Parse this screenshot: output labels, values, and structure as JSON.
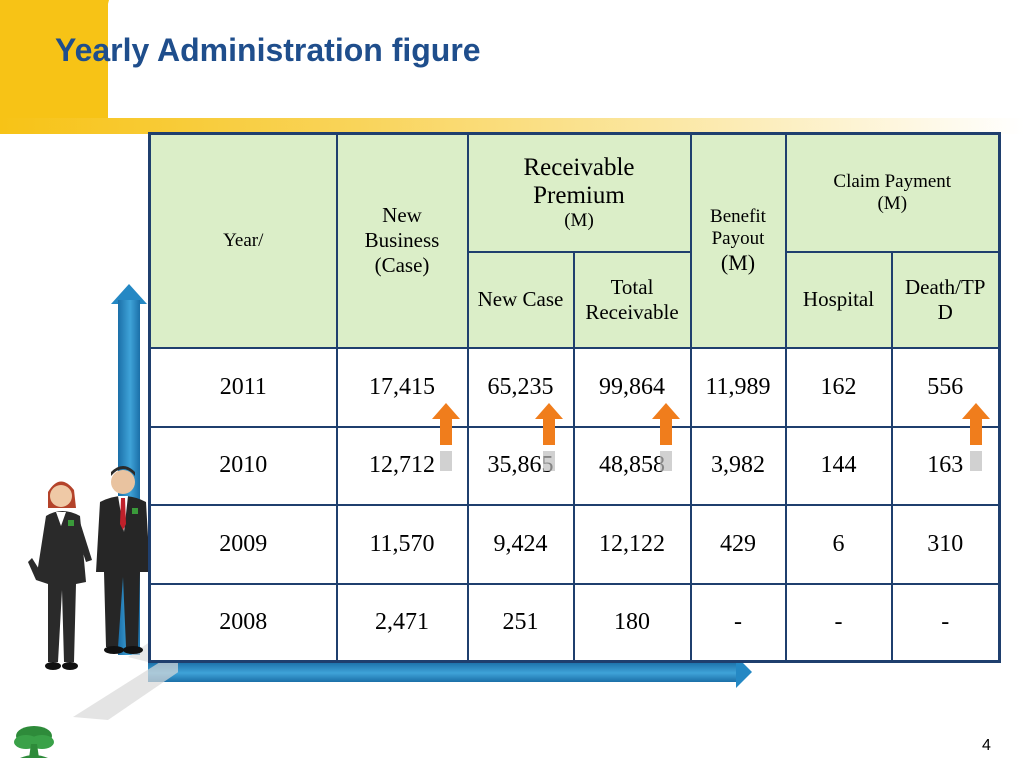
{
  "slide": {
    "title": "Yearly Administration figure",
    "page_number": "4"
  },
  "table": {
    "headers": {
      "year": "Year/",
      "new_business": [
        "New",
        "Business",
        "(Case)"
      ],
      "receivable_premium": [
        "Receivable",
        "Premium"
      ],
      "receivable_premium_unit": "(M)",
      "benefit_payout": [
        "Benefit",
        "Payout"
      ],
      "benefit_payout_unit": "(M)",
      "claim_payment": "Claim Payment",
      "claim_payment_unit": "(M)",
      "new_case": "New Case",
      "total_receivable": [
        "Total",
        "Receivable"
      ],
      "hospital": "Hospital",
      "death_tpd": [
        "Death/TP",
        "D"
      ]
    },
    "rows": [
      {
        "year": "2011",
        "new_business": "17,415",
        "new_case": "65,235",
        "total_receivable": "99,864",
        "benefit_payout": "11,989",
        "hospital": "162",
        "death_tpd": "556"
      },
      {
        "year": "2010",
        "new_business": "12,712",
        "new_case": "35,865",
        "total_receivable": "48,858",
        "benefit_payout": "3,982",
        "hospital": "144",
        "death_tpd": "163"
      },
      {
        "year": "2009",
        "new_business": "11,570",
        "new_case": "9,424",
        "total_receivable": "12,122",
        "benefit_payout": "429",
        "hospital": "6",
        "death_tpd": "310"
      },
      {
        "year": "2008",
        "new_business": "2,471",
        "new_case": "251",
        "total_receivable": "180",
        "benefit_payout": "-",
        "hospital": "-",
        "death_tpd": "-"
      }
    ]
  },
  "colors": {
    "title": "#1f4e8c",
    "header_fill": "#dbeec8",
    "border": "#1f3f6e",
    "accent_yellow": "#f7c316",
    "axis_blue": "#2488c4",
    "arrow_orange": "#f07d1c",
    "new_business_text": "#1f3f8c"
  },
  "icons": [
    "up-arrow-icon",
    "tree-logo-icon",
    "business-people-illustration"
  ]
}
